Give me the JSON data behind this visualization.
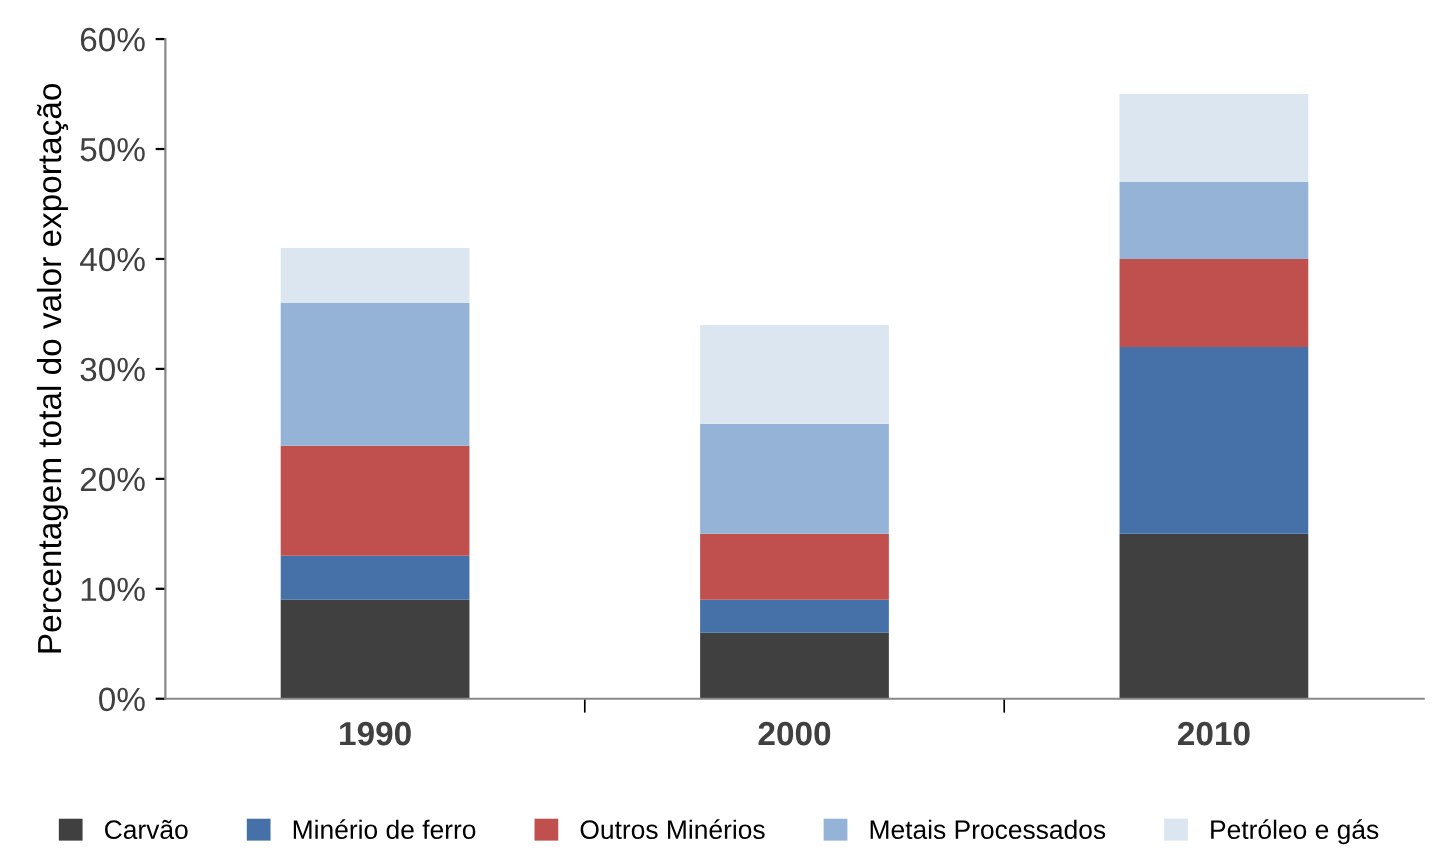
{
  "chart_data": {
    "type": "bar",
    "stacked": true,
    "ylabel": "Percentagem total do valor exportação",
    "categories": [
      "1990",
      "2000",
      "2010"
    ],
    "series": [
      {
        "name": "Carvão",
        "color": "#404040",
        "values": [
          9,
          6,
          15
        ]
      },
      {
        "name": "Minério de ferro",
        "color": "#4571a8",
        "values": [
          4,
          3,
          17
        ]
      },
      {
        "name": "Outros Minérios",
        "color": "#c0504d",
        "values": [
          10,
          6,
          8
        ]
      },
      {
        "name": "Metais Processados",
        "color": "#95b3d7",
        "values": [
          13,
          10,
          7
        ]
      },
      {
        "name": "Petróleo e gás",
        "color": "#dce6f1",
        "values": [
          5,
          9,
          8
        ]
      }
    ],
    "ylim": [
      0,
      60
    ],
    "yticks": [
      {
        "value": 0,
        "label": "0%"
      },
      {
        "value": 10,
        "label": "10%"
      },
      {
        "value": 20,
        "label": "20%"
      },
      {
        "value": 30,
        "label": "30%"
      },
      {
        "value": 40,
        "label": "40%"
      },
      {
        "value": 50,
        "label": "50%"
      },
      {
        "value": 60,
        "label": "60%"
      }
    ],
    "grid": false,
    "legend": "bottom"
  }
}
